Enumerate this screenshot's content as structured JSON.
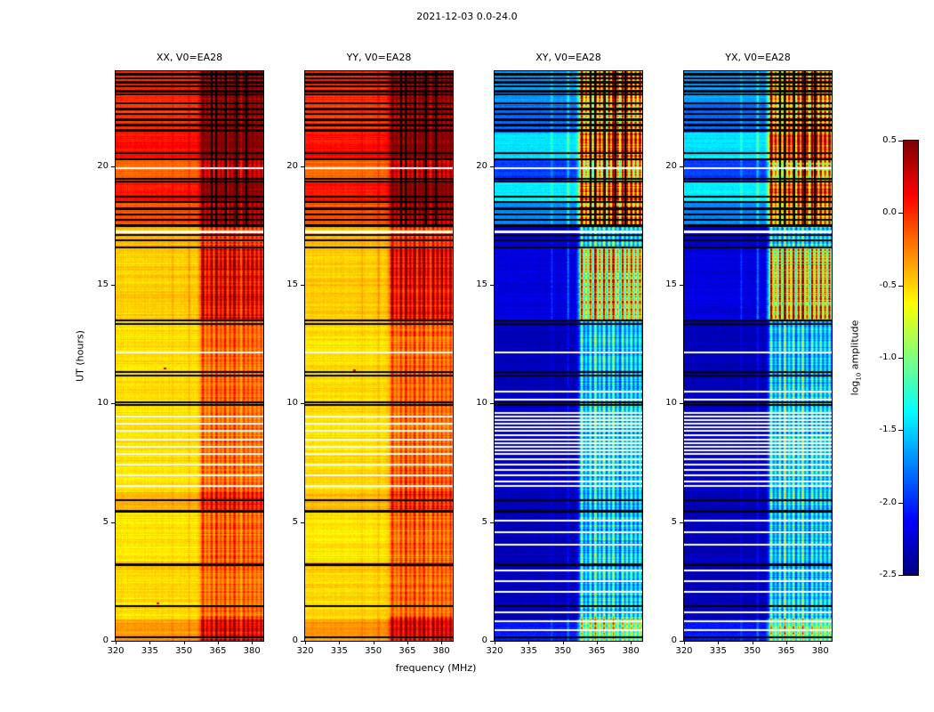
{
  "title": "2021-12-03 0.0-24.0",
  "axes": {
    "xlabel": "frequency (MHz)",
    "ylabel": "UT (hours)",
    "x_tick_labels": [
      "320",
      "335",
      "350",
      "365",
      "380"
    ],
    "y_tick_labels": [
      "0",
      "5",
      "10",
      "15",
      "20"
    ]
  },
  "colorbar": {
    "label_prefix": "log",
    "label_sub": "10",
    "label_suffix": " amplitude",
    "tick_labels": [
      "0.5",
      "0.0",
      "-0.5",
      "-1.0",
      "-1.5",
      "-2.0",
      "-2.5"
    ],
    "vmin": -2.5,
    "vmax": 0.5,
    "colormap": "jet"
  },
  "chart_data": {
    "type": "heatmap",
    "title": "2021-12-03 0.0-24.0",
    "xlabel": "frequency (MHz)",
    "ylabel": "UT (hours)",
    "x_range": [
      320,
      385
    ],
    "y_range": [
      0,
      24
    ],
    "value_range": [
      -2.5,
      0.5
    ],
    "colormap": "jet",
    "colorbar_label": "log10 amplitude",
    "panels": [
      {
        "label": "XX, V0=EA28",
        "kind": "auto",
        "seed": 101
      },
      {
        "label": "YY, V0=EA28",
        "kind": "auto",
        "seed": 202
      },
      {
        "label": "XY, V0=EA28",
        "kind": "cross",
        "seed": 303
      },
      {
        "label": "YX, V0=EA28",
        "kind": "cross",
        "seed": 404
      }
    ],
    "model": {
      "auto_base": [
        [
          0,
          0.9,
          -0.33
        ],
        [
          0.9,
          2.95,
          -0.52
        ],
        [
          2.95,
          3.35,
          -0.45
        ],
        [
          3.35,
          5.5,
          -0.56
        ],
        [
          5.5,
          6.25,
          -0.42
        ],
        [
          6.25,
          13.5,
          -0.54
        ],
        [
          13.5,
          16.6,
          -0.48
        ],
        [
          16.6,
          17.45,
          -0.44
        ],
        [
          17.45,
          18.5,
          -0.12
        ],
        [
          18.5,
          19.4,
          0.08
        ],
        [
          19.4,
          20.3,
          -0.18
        ],
        [
          20.3,
          21.5,
          0.08
        ],
        [
          21.5,
          22.6,
          -0.05
        ],
        [
          22.6,
          24,
          0.0
        ]
      ],
      "cross_base": [
        [
          0,
          0.9,
          -2.05
        ],
        [
          0.9,
          6.3,
          -2.33
        ],
        [
          6.3,
          10.5,
          -2.28
        ],
        [
          10.5,
          13.5,
          -2.33
        ],
        [
          13.5,
          16.6,
          -2.22
        ],
        [
          16.6,
          17.45,
          -2.28
        ],
        [
          17.45,
          18.5,
          -1.72
        ],
        [
          18.5,
          19.4,
          -1.42
        ],
        [
          19.4,
          20.3,
          -1.95
        ],
        [
          20.3,
          21.4,
          -1.45
        ],
        [
          21.4,
          22.6,
          -1.8
        ],
        [
          22.6,
          24,
          -1.65
        ]
      ],
      "auto_rfi_gain": [
        [
          0,
          1,
          0.85
        ],
        [
          1,
          3.3,
          0.5
        ],
        [
          3.3,
          5.5,
          0.6
        ],
        [
          5.5,
          6.3,
          0.75
        ],
        [
          6.3,
          13.5,
          0.55
        ],
        [
          13.5,
          16.6,
          1.0
        ],
        [
          16.6,
          17.45,
          0.6
        ],
        [
          17.45,
          24,
          0.75
        ]
      ],
      "cross_rfi_gain": [
        [
          0,
          1,
          1.7
        ],
        [
          1,
          13.5,
          1.25
        ],
        [
          13.5,
          16.6,
          2.5
        ],
        [
          16.6,
          17.45,
          1.3
        ],
        [
          17.45,
          24,
          2.3
        ]
      ],
      "rfi_band_start": 357,
      "rfi_pedestal": 0.25,
      "rfi_stripes": [
        [
          358.4,
          0.85
        ],
        [
          360.3,
          0.5
        ],
        [
          362.2,
          0.75
        ],
        [
          364.4,
          1.0
        ],
        [
          366.3,
          0.6
        ],
        [
          368.2,
          0.9
        ],
        [
          370.4,
          0.7
        ],
        [
          372.3,
          0.95
        ],
        [
          374.2,
          0.55
        ],
        [
          376.4,
          0.8
        ],
        [
          378.3,
          0.65
        ],
        [
          380.2,
          0.75
        ],
        [
          382.1,
          0.6
        ],
        [
          384.0,
          0.7
        ]
      ],
      "narrow_lines": [
        [
          352.4,
          0.18
        ],
        [
          345.2,
          0.1
        ]
      ],
      "upper_start": 17.45,
      "flag_cols_black_upper": [
        361.9,
        363.7,
        368.1,
        372.7,
        377.1
      ],
      "flag_rows_black": [
        [
          0.18,
          2
        ],
        [
          1.5,
          2
        ],
        [
          3.28,
          3
        ],
        [
          5.52,
          3
        ],
        [
          5.95,
          2
        ],
        [
          9.97,
          2
        ],
        [
          10.1,
          2
        ],
        [
          11.22,
          2
        ],
        [
          11.36,
          2
        ],
        [
          13.38,
          2
        ],
        [
          13.52,
          2
        ],
        [
          16.62,
          2
        ],
        [
          16.92,
          2
        ],
        [
          17.12,
          2
        ],
        [
          17.55,
          3
        ],
        [
          17.78,
          2
        ],
        [
          18.0,
          2
        ],
        [
          18.25,
          3
        ],
        [
          18.52,
          2
        ],
        [
          18.75,
          2
        ],
        [
          19.38,
          2
        ],
        [
          19.5,
          2
        ],
        [
          20.32,
          2
        ],
        [
          20.6,
          2
        ],
        [
          21.55,
          3
        ],
        [
          21.78,
          3
        ],
        [
          22.0,
          3
        ],
        [
          22.25,
          2
        ],
        [
          22.48,
          3
        ],
        [
          22.7,
          2
        ],
        [
          23.05,
          2
        ],
        [
          23.22,
          3
        ],
        [
          23.4,
          2
        ],
        [
          23.58,
          3
        ],
        [
          23.75,
          2
        ],
        [
          23.92,
          3
        ]
      ],
      "gap_rows_white": [
        [
          6.58,
          2
        ],
        [
          7.02,
          2
        ],
        [
          7.48,
          2
        ],
        [
          7.92,
          2
        ],
        [
          8.22,
          2
        ],
        [
          8.52,
          2
        ],
        [
          8.88,
          2
        ],
        [
          9.18,
          2
        ],
        [
          9.48,
          2
        ],
        [
          12.18,
          2
        ],
        [
          17.3,
          3
        ],
        [
          19.95,
          2
        ]
      ],
      "gap_rows_white_cross": [
        [
          0.5,
          2
        ],
        [
          0.85,
          2
        ],
        [
          1.25,
          2
        ],
        [
          2.1,
          2
        ],
        [
          2.55,
          2
        ],
        [
          3.0,
          2
        ],
        [
          4.1,
          2
        ],
        [
          4.6,
          2
        ],
        [
          5.1,
          2
        ],
        [
          6.75,
          2
        ],
        [
          7.25,
          2
        ],
        [
          7.7,
          2
        ],
        [
          8.05,
          2
        ],
        [
          8.38,
          2
        ],
        [
          8.7,
          2
        ],
        [
          9.02,
          2
        ],
        [
          9.32,
          2
        ],
        [
          9.65,
          2
        ],
        [
          10.2,
          2
        ],
        [
          10.55,
          2
        ]
      ],
      "specks": [
        {
          "panel": 0,
          "t": 11.5,
          "f": 341,
          "v": 0.35
        },
        {
          "panel": 1,
          "t": 11.45,
          "f": 341,
          "v": 0.25
        },
        {
          "panel": 0,
          "t": 1.62,
          "f": 338,
          "v": 0.2
        }
      ],
      "noise": {
        "auto_cell": 0.1,
        "cross_cell": 0.12,
        "row": 0.14,
        "col": 0.06,
        "gain_jitter": 0.5
      }
    }
  }
}
